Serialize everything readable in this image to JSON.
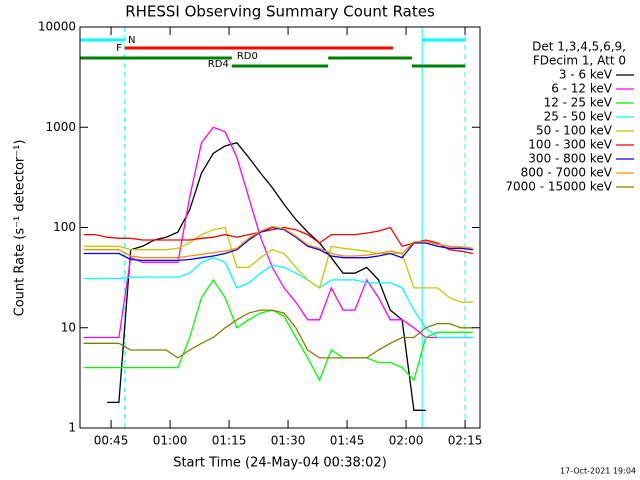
{
  "chart_data": {
    "type": "line",
    "title": "RHESSI Observing Summary Count Rates",
    "xlabel": "Start Time (24-May-04 00:38:02)",
    "ylabel": "Count Rate (s⁻¹ detector⁻¹)",
    "footer": "17-Oct-2021 19:04",
    "legend_title": [
      "Det 1,3,4,5,6,9,",
      "FDecim 1, Att 0"
    ],
    "log_y": true,
    "xlim": [
      37.1,
      138.8
    ],
    "xticks": [
      {
        "value": 45,
        "label": "00:45"
      },
      {
        "value": 60,
        "label": "01:00"
      },
      {
        "value": 75,
        "label": "01:15"
      },
      {
        "value": 90,
        "label": "01:30"
      },
      {
        "value": 105,
        "label": "01:45"
      },
      {
        "value": 120,
        "label": "02:00"
      },
      {
        "value": 135,
        "label": "02:15"
      }
    ],
    "ylim": [
      1,
      10000
    ],
    "yticks": [
      1,
      10,
      100,
      1000,
      10000
    ],
    "x": [
      38,
      41,
      44,
      47,
      50,
      53,
      56,
      59,
      62,
      65,
      68,
      71,
      74,
      77,
      80,
      83,
      86,
      89,
      92,
      95,
      98,
      101,
      104,
      107,
      110,
      113,
      116,
      119,
      122,
      125,
      128,
      131,
      134,
      137
    ],
    "series": [
      {
        "name": "3 - 6 keV",
        "color": "#000000",
        "values": [
          null,
          null,
          1.8,
          1.8,
          60,
          65,
          75,
          80,
          90,
          150,
          350,
          550,
          650,
          700,
          500,
          350,
          250,
          170,
          120,
          90,
          70,
          50,
          35,
          35,
          40,
          30,
          15,
          12,
          1.5,
          1.5,
          null,
          null,
          null,
          null
        ]
      },
      {
        "name": "6 - 12 keV",
        "color": "#ff00ff",
        "values": [
          8,
          8,
          8,
          8,
          50,
          45,
          45,
          45,
          45,
          200,
          700,
          1000,
          900,
          500,
          200,
          80,
          40,
          25,
          18,
          12,
          12,
          25,
          15,
          15,
          30,
          20,
          12,
          12,
          10,
          8,
          8,
          8,
          8,
          8
        ]
      },
      {
        "name": "12 - 25 keV",
        "color": "#00ff00",
        "values": [
          4,
          4,
          4,
          4,
          4,
          4,
          4,
          4,
          4,
          8,
          20,
          30,
          20,
          10,
          12,
          14,
          15,
          13,
          8,
          5,
          3,
          6,
          5,
          5,
          5,
          4.5,
          4.5,
          4,
          3,
          8,
          9,
          9,
          9,
          9
        ]
      },
      {
        "name": "25 - 50 keV",
        "color": "#00ffff",
        "values": [
          31,
          31,
          31,
          31,
          32,
          32,
          32,
          32,
          32,
          35,
          45,
          50,
          45,
          25,
          28,
          35,
          42,
          40,
          35,
          30,
          25,
          30,
          30,
          30,
          28,
          28,
          28,
          25,
          15,
          10,
          8,
          8,
          8,
          8
        ]
      },
      {
        "name": "50 - 100 keV",
        "color": "#c8c800",
        "values": [
          65,
          65,
          65,
          65,
          60,
          60,
          60,
          60,
          62,
          70,
          85,
          95,
          100,
          40,
          40,
          50,
          60,
          55,
          40,
          30,
          25,
          65,
          62,
          60,
          58,
          55,
          55,
          55,
          25,
          25,
          25,
          20,
          18,
          18
        ]
      },
      {
        "name": "100 - 300 keV",
        "color": "#ff0000",
        "values": [
          85,
          85,
          80,
          78,
          78,
          75,
          75,
          75,
          75,
          75,
          78,
          80,
          85,
          80,
          85,
          90,
          95,
          100,
          95,
          85,
          70,
          85,
          85,
          85,
          88,
          92,
          100,
          65,
          70,
          75,
          70,
          60,
          58,
          55
        ]
      },
      {
        "name": "300 - 800 keV",
        "color": "#0000ff",
        "values": [
          55,
          55,
          55,
          55,
          48,
          47,
          47,
          47,
          47,
          48,
          50,
          52,
          55,
          60,
          75,
          90,
          100,
          95,
          80,
          65,
          60,
          52,
          50,
          50,
          50,
          52,
          55,
          50,
          70,
          70,
          65,
          62,
          62,
          60
        ]
      },
      {
        "name": "800 - 7000 keV",
        "color": "#ff8c00",
        "values": [
          60,
          60,
          60,
          60,
          52,
          50,
          50,
          50,
          50,
          52,
          54,
          56,
          58,
          62,
          78,
          92,
          102,
          97,
          82,
          67,
          62,
          55,
          52,
          52,
          53,
          55,
          58,
          55,
          72,
          72,
          68,
          65,
          64,
          62
        ]
      },
      {
        "name": "7000 - 15000 keV",
        "color": "#808000",
        "values": [
          7,
          7,
          7,
          7,
          6,
          6,
          6,
          6,
          5,
          6,
          7,
          8,
          10,
          12,
          14,
          15,
          15,
          14,
          10,
          6,
          5,
          5,
          5,
          5,
          5,
          6,
          7,
          8,
          8,
          10,
          11,
          11,
          10,
          10
        ]
      }
    ],
    "bars": [
      {
        "label": "N",
        "color": "#00ffff",
        "spans": [
          [
            37.1,
            48.5
          ],
          [
            124.1,
            135
          ]
        ]
      },
      {
        "label": "F",
        "color": "#ff0000",
        "spans": [
          [
            48.5,
            116.7
          ]
        ]
      },
      {
        "label": "RD0",
        "color": "#008000",
        "spans": [
          [
            37.1,
            75.7
          ],
          [
            100.2,
            121.5
          ]
        ]
      },
      {
        "label": "RD4",
        "color": "#008000",
        "spans": [
          [
            75.7,
            100.2
          ],
          [
            121.5,
            135
          ]
        ]
      }
    ],
    "vlines": [
      {
        "x": 37.1,
        "dashed": false,
        "color": "#00ffff"
      },
      {
        "x": 48.5,
        "dashed": true,
        "color": "#00ffff"
      },
      {
        "x": 124.1,
        "dashed": false,
        "color": "#00ffff"
      },
      {
        "x": 135,
        "dashed": true,
        "color": "#00ffff"
      }
    ]
  }
}
